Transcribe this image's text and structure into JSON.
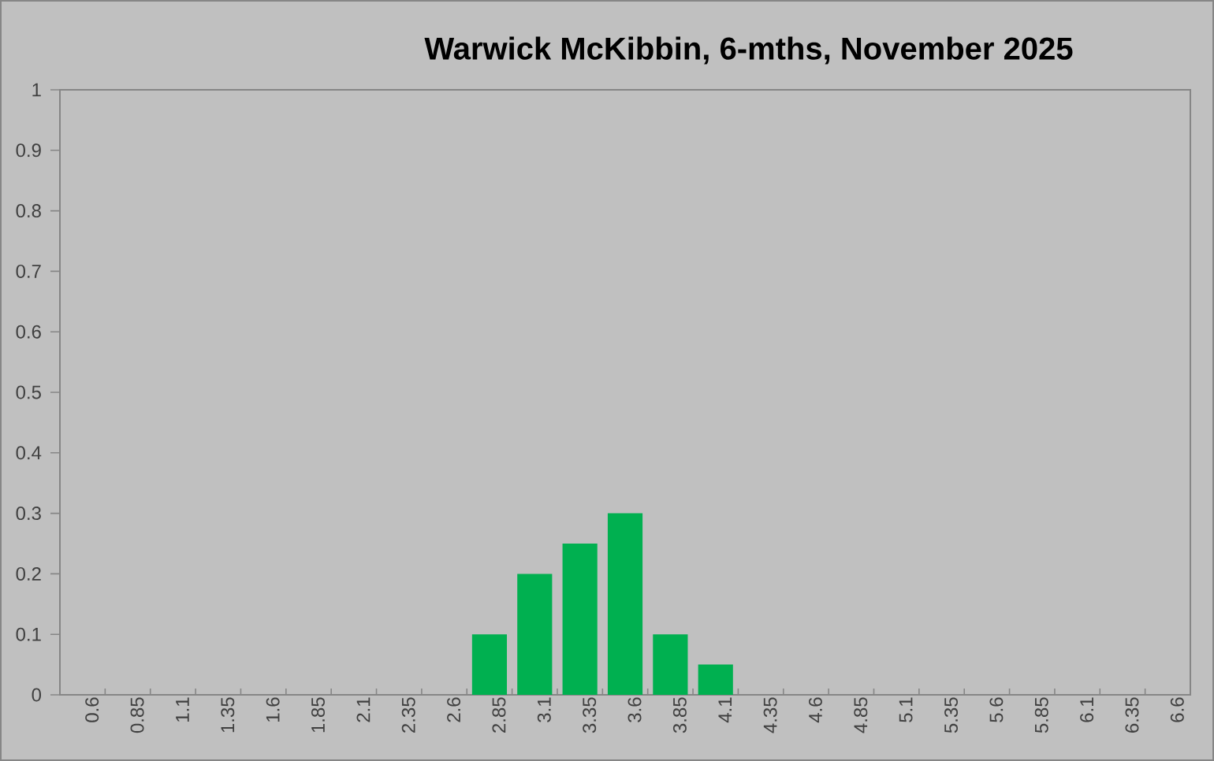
{
  "chart_data": {
    "type": "bar",
    "title": "Warwick McKibbin, 6-mths, November 2025",
    "categories": [
      "0.6",
      "0.85",
      "1.1",
      "1.35",
      "1.6",
      "1.85",
      "2.1",
      "2.35",
      "2.6",
      "2.85",
      "3.1",
      "3.35",
      "3.6",
      "3.85",
      "4.1",
      "4.35",
      "4.6",
      "4.85",
      "5.1",
      "5.35",
      "5.6",
      "5.85",
      "6.1",
      "6.35",
      "6.6"
    ],
    "values": [
      0,
      0,
      0,
      0,
      0,
      0,
      0,
      0,
      0,
      0.1,
      0.2,
      0.25,
      0.3,
      0.1,
      0.05,
      0,
      0,
      0,
      0,
      0,
      0,
      0,
      0,
      0,
      0
    ],
    "color": "#00b050",
    "ylim": [
      0,
      1
    ],
    "yticks": [
      0,
      0.1,
      0.2,
      0.3,
      0.4,
      0.5,
      0.6,
      0.7,
      0.8,
      0.9,
      1
    ]
  }
}
